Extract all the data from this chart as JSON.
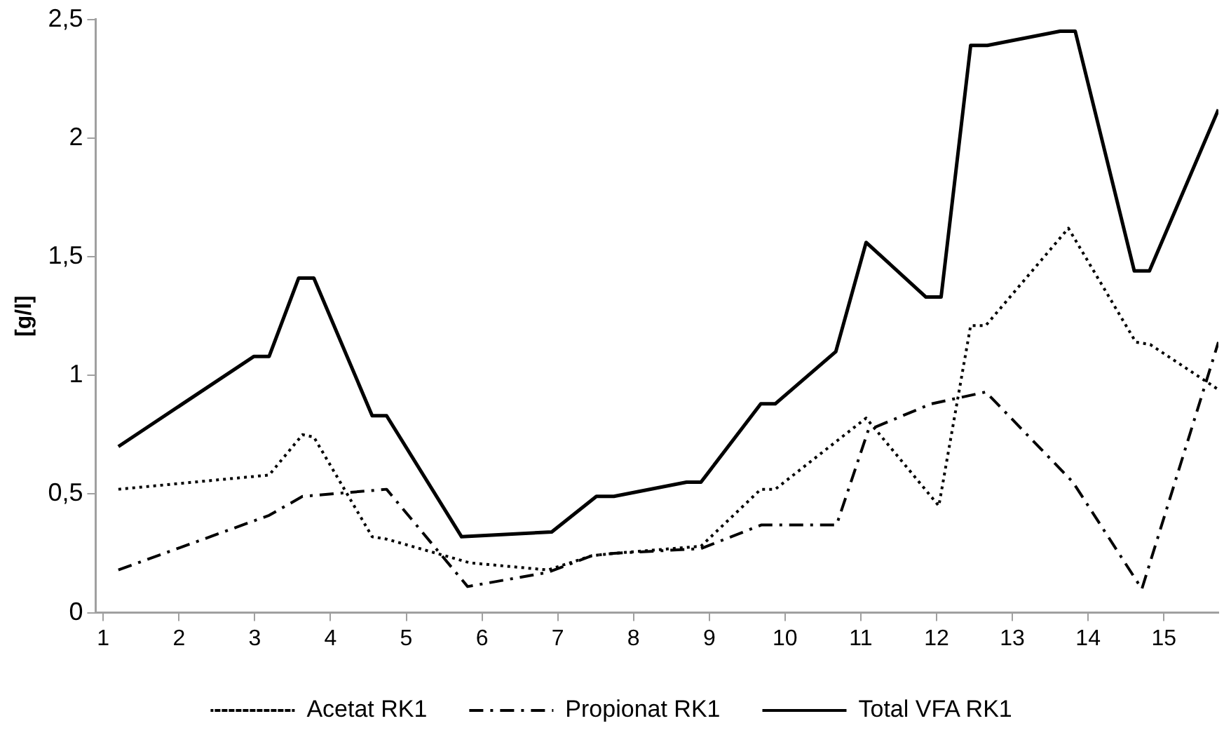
{
  "chart_data": {
    "type": "line",
    "ylabel": "[g/l]",
    "xlim": [
      0.9,
      15.72
    ],
    "xticks": [
      1,
      2,
      3,
      4,
      5,
      6,
      7,
      8,
      9,
      10,
      11,
      12,
      13,
      14,
      15
    ],
    "ylim": [
      0,
      2.5
    ],
    "yticks": [
      0,
      {
        "value": 0.5,
        "label": "0,5"
      },
      1,
      {
        "value": 1.5,
        "label": "1,5"
      },
      2,
      {
        "value": 2.5,
        "label": "2,5"
      }
    ],
    "grid": false,
    "legend": "bottom",
    "marker": "none",
    "series": [
      {
        "name": "Acetat RK1",
        "color": "#000000",
        "line_style": "dotted",
        "x": [
          1.2,
          3.19,
          3.63,
          3.78,
          4.55,
          4.74,
          5.84,
          6.87,
          7.45,
          7.74,
          8.89,
          9.68,
          9.87,
          11.07,
          12.03,
          12.45,
          12.65,
          13.74,
          14.63,
          14.82,
          15.72
        ],
        "values": [
          0.52,
          0.58,
          0.75,
          0.74,
          0.32,
          0.31,
          0.21,
          0.18,
          0.24,
          0.25,
          0.28,
          0.52,
          0.52,
          0.82,
          0.45,
          1.21,
          1.21,
          1.62,
          1.14,
          1.13,
          0.94
        ]
      },
      {
        "name": "Propionat RK1",
        "color": "#000000",
        "line_style": "dashdot",
        "x": [
          1.2,
          3.19,
          3.63,
          4.74,
          5.81,
          6.87,
          7.45,
          7.74,
          8.89,
          9.69,
          10.68,
          11.1,
          11.93,
          12.65,
          13.8,
          14.71,
          15.72
        ],
        "values": [
          0.18,
          0.41,
          0.49,
          0.52,
          0.11,
          0.17,
          0.24,
          0.25,
          0.27,
          0.37,
          0.37,
          0.77,
          0.88,
          0.93,
          0.55,
          0.1,
          1.14
        ]
      },
      {
        "name": "Total VFA RK1",
        "color": "#000000",
        "line_style": "solid",
        "x": [
          1.2,
          2.99,
          3.19,
          3.58,
          3.78,
          4.55,
          4.74,
          5.73,
          6.92,
          7.51,
          7.74,
          8.7,
          8.89,
          9.68,
          9.87,
          10.67,
          11.07,
          11.86,
          12.06,
          12.45,
          12.67,
          13.63,
          13.83,
          14.61,
          14.81,
          15.72
        ],
        "values": [
          0.7,
          1.08,
          1.08,
          1.41,
          1.41,
          0.83,
          0.83,
          0.32,
          0.34,
          0.49,
          0.49,
          0.55,
          0.55,
          0.88,
          0.88,
          1.1,
          1.56,
          1.33,
          1.33,
          2.39,
          2.39,
          2.45,
          2.45,
          1.44,
          1.44,
          2.12
        ]
      }
    ]
  }
}
